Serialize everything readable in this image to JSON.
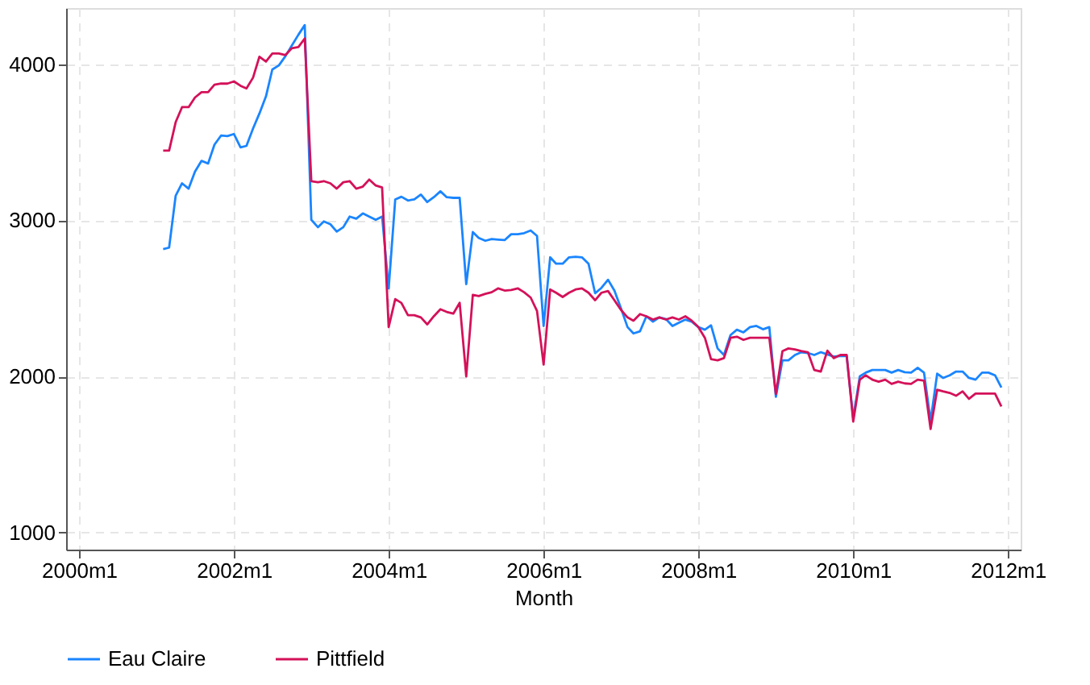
{
  "chart_data": {
    "type": "line",
    "xlabel": "Month",
    "xlim": [
      "1999-11",
      "2012-03"
    ],
    "xticks": [
      {
        "value": "2000-01",
        "label": "2000m1"
      },
      {
        "value": "2002-01",
        "label": "2002m1"
      },
      {
        "value": "2004-01",
        "label": "2004m1"
      },
      {
        "value": "2006-01",
        "label": "2006m1"
      },
      {
        "value": "2008-01",
        "label": "2008m1"
      },
      {
        "value": "2010-01",
        "label": "2010m1"
      },
      {
        "value": "2012-01",
        "label": "2012m1"
      }
    ],
    "ylim": [
      890,
      4360
    ],
    "yticks": [
      1000,
      2000,
      3000,
      4000
    ],
    "grid": true,
    "legend": "bottom",
    "line_style": "solid",
    "x": [
      "2001-02",
      "2001-03",
      "2001-04",
      "2001-05",
      "2001-06",
      "2001-07",
      "2001-08",
      "2001-09",
      "2001-10",
      "2001-11",
      "2001-12",
      "2002-01",
      "2002-02",
      "2002-03",
      "2002-04",
      "2002-05",
      "2002-06",
      "2002-07",
      "2002-08",
      "2002-09",
      "2002-10",
      "2002-11",
      "2002-12",
      "2003-01",
      "2003-02",
      "2003-03",
      "2003-04",
      "2003-05",
      "2003-06",
      "2003-07",
      "2003-08",
      "2003-09",
      "2003-10",
      "2003-11",
      "2003-12",
      "2004-01",
      "2004-02",
      "2004-03",
      "2004-04",
      "2004-05",
      "2004-06",
      "2004-07",
      "2004-08",
      "2004-09",
      "2004-10",
      "2004-11",
      "2004-12",
      "2005-01",
      "2005-02",
      "2005-03",
      "2005-04",
      "2005-05",
      "2005-06",
      "2005-07",
      "2005-08",
      "2005-09",
      "2005-10",
      "2005-11",
      "2005-12",
      "2006-01",
      "2006-02",
      "2006-03",
      "2006-04",
      "2006-05",
      "2006-06",
      "2006-07",
      "2006-08",
      "2006-09",
      "2006-10",
      "2006-11",
      "2006-12",
      "2007-01",
      "2007-02",
      "2007-03",
      "2007-04",
      "2007-05",
      "2007-06",
      "2007-07",
      "2007-08",
      "2007-09",
      "2007-10",
      "2007-11",
      "2007-12",
      "2008-01",
      "2008-02",
      "2008-03",
      "2008-04",
      "2008-05",
      "2008-06",
      "2008-07",
      "2008-08",
      "2008-09",
      "2008-10",
      "2008-11",
      "2008-12",
      "2009-01",
      "2009-02",
      "2009-03",
      "2009-04",
      "2009-05",
      "2009-06",
      "2009-07",
      "2009-08",
      "2009-09",
      "2009-10",
      "2009-11",
      "2009-12",
      "2010-01",
      "2010-02",
      "2010-03",
      "2010-04",
      "2010-05",
      "2010-06",
      "2010-07",
      "2010-08",
      "2010-09",
      "2010-10",
      "2010-11",
      "2010-12",
      "2011-01",
      "2011-02",
      "2011-03",
      "2011-04",
      "2011-05",
      "2011-06",
      "2011-07",
      "2011-08",
      "2011-09",
      "2011-10",
      "2011-11",
      "2011-12"
    ],
    "series": [
      {
        "name": "Eau Claire",
        "color": "#1a85ff",
        "values": [
          2815,
          2825,
          3158,
          3237,
          3203,
          3312,
          3381,
          3364,
          3485,
          3543,
          3540,
          3553,
          3467,
          3477,
          3588,
          3684,
          3794,
          3966,
          3993,
          4052,
          4120,
          4189,
          4251,
          3003,
          2956,
          2993,
          2975,
          2928,
          2956,
          3024,
          3010,
          3044,
          3024,
          3003,
          3024,
          2564,
          3134,
          3151,
          3127,
          3134,
          3165,
          3117,
          3148,
          3186,
          3148,
          3144,
          3144,
          2591,
          2925,
          2887,
          2869,
          2880,
          2876,
          2873,
          2911,
          2911,
          2918,
          2935,
          2900,
          2323,
          2763,
          2722,
          2722,
          2763,
          2766,
          2763,
          2722,
          2533,
          2567,
          2619,
          2550,
          2436,
          2316,
          2275,
          2289,
          2385,
          2351,
          2378,
          2368,
          2323,
          2344,
          2364,
          2351,
          2316,
          2299,
          2327,
          2179,
          2137,
          2265,
          2299,
          2282,
          2316,
          2323,
          2302,
          2316,
          1869,
          2103,
          2103,
          2137,
          2155,
          2150,
          2137,
          2155,
          2140,
          2127,
          2130,
          2130,
          1732,
          2000,
          2024,
          2041,
          2041,
          2041,
          2024,
          2041,
          2027,
          2024,
          2055,
          2024,
          1715,
          2017,
          1990,
          2007,
          2031,
          2031,
          1990,
          1979,
          2024,
          2024,
          2007,
          1928
        ]
      },
      {
        "name": "Pittfield",
        "color": "#d41159",
        "values": [
          3447,
          3447,
          3629,
          3725,
          3725,
          3787,
          3821,
          3821,
          3869,
          3876,
          3876,
          3890,
          3862,
          3845,
          3914,
          4048,
          4017,
          4069,
          4069,
          4059,
          4103,
          4110,
          4165,
          3251,
          3244,
          3251,
          3237,
          3203,
          3244,
          3251,
          3203,
          3216,
          3261,
          3223,
          3210,
          2316,
          2495,
          2471,
          2392,
          2392,
          2378,
          2333,
          2385,
          2430,
          2413,
          2402,
          2471,
          2000,
          2522,
          2515,
          2529,
          2539,
          2564,
          2550,
          2553,
          2564,
          2539,
          2505,
          2419,
          2076,
          2557,
          2536,
          2509,
          2536,
          2557,
          2564,
          2536,
          2488,
          2536,
          2547,
          2488,
          2426,
          2378,
          2357,
          2399,
          2385,
          2364,
          2378,
          2364,
          2378,
          2364,
          2385,
          2357,
          2316,
          2247,
          2110,
          2103,
          2117,
          2247,
          2254,
          2234,
          2247,
          2247,
          2247,
          2247,
          1887,
          2162,
          2179,
          2172,
          2162,
          2155,
          2041,
          2031,
          2165,
          2117,
          2137,
          2137,
          1711,
          1979,
          2007,
          1979,
          1966,
          1979,
          1952,
          1966,
          1955,
          1952,
          1979,
          1972,
          1663,
          1914,
          1904,
          1894,
          1876,
          1904,
          1856,
          1890,
          1890,
          1890,
          1890,
          1807
        ]
      }
    ]
  }
}
